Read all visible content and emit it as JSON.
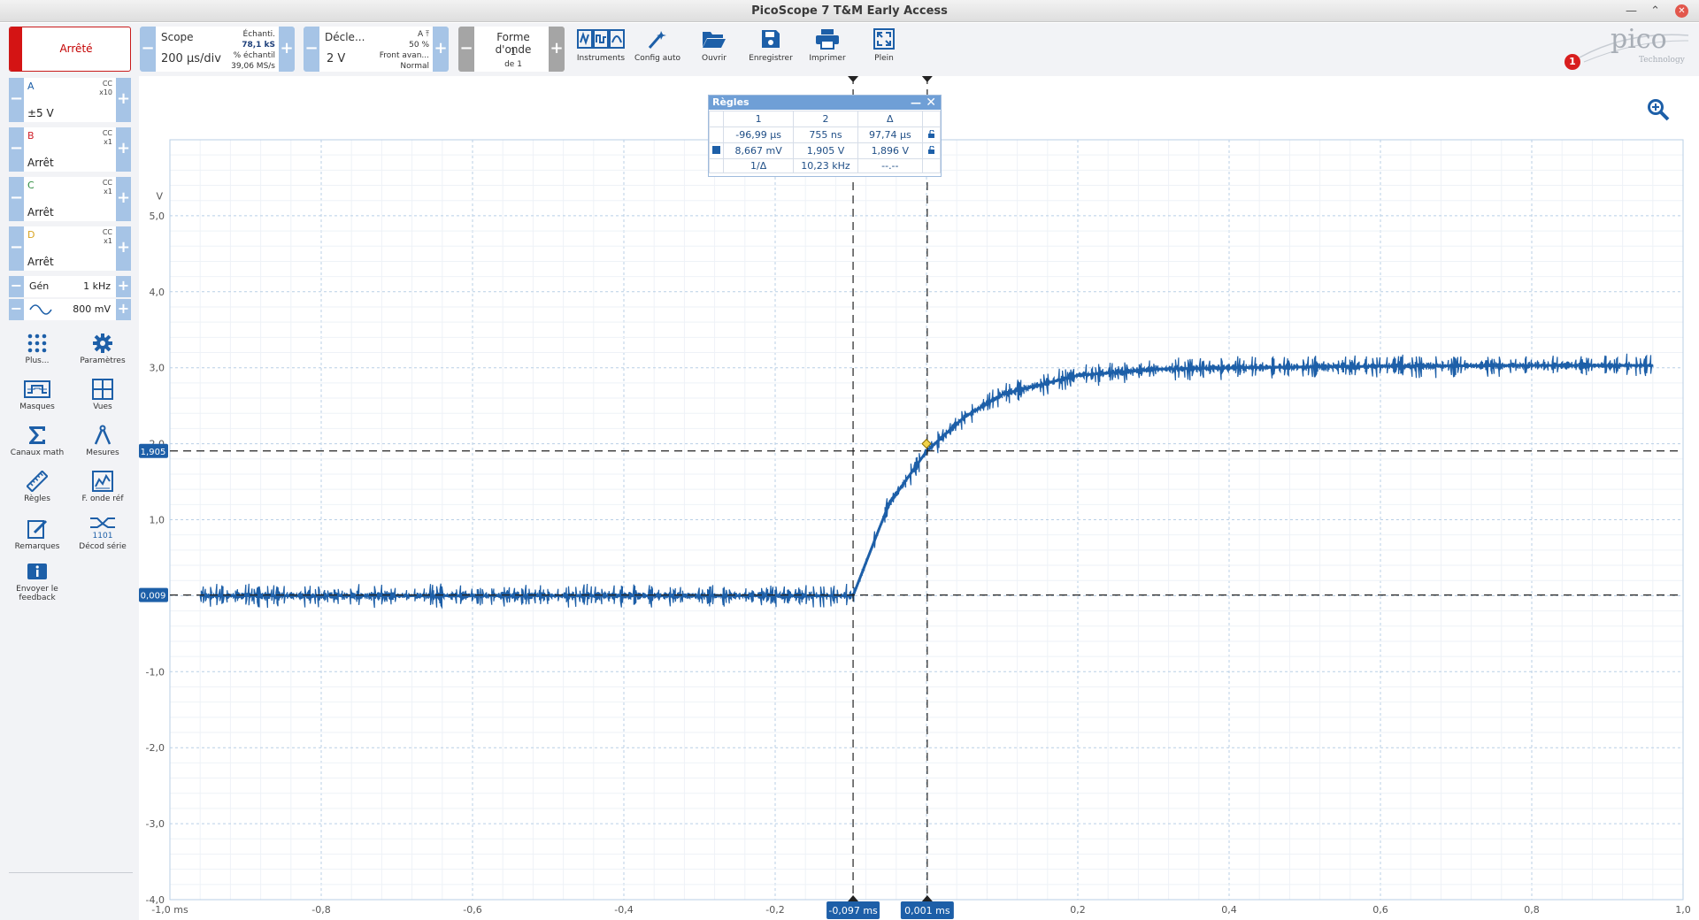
{
  "window": {
    "title": "PicoScope 7 T&M Early Access",
    "minimize_icon": "minimize-icon",
    "maximize_icon": "maximize-icon",
    "close_icon": "close-icon"
  },
  "toolbar": {
    "run_stop_label": "Arrêté",
    "scope": {
      "title": "Scope",
      "timebase": "200 µs/div",
      "sample_label": "Échanti.",
      "samples": "78,1 kS",
      "percent_label": "% échantil",
      "sample_rate": "39,06 MS/s"
    },
    "trigger": {
      "title": "Décle...",
      "level": "2 V",
      "channel": "A",
      "percent": "50 %",
      "edge": "Front avan...",
      "mode": "Normal"
    },
    "waveform": {
      "title": "Forme d'onde",
      "index": "1",
      "of_total": "de 1"
    },
    "buttons": [
      {
        "label": "Instruments",
        "icon": "instruments-icon"
      },
      {
        "label": "Config auto",
        "icon": "auto-setup-icon"
      },
      {
        "label": "Ouvrir",
        "icon": "folder-open-icon"
      },
      {
        "label": "Enregistrer",
        "icon": "save-icon"
      },
      {
        "label": "Imprimer",
        "icon": "print-icon"
      },
      {
        "label": "Plein",
        "icon": "fullscreen-icon"
      }
    ],
    "notifications": "1",
    "logo_text": "pico",
    "logo_sub": "Technology"
  },
  "channels": [
    {
      "name": "A",
      "coupling": "CC",
      "probe": "x10",
      "range": "±5 V",
      "color": "#1d5fa8"
    },
    {
      "name": "B",
      "coupling": "CC",
      "probe": "x1",
      "range": "Arrêt",
      "color": "#d0202a"
    },
    {
      "name": "C",
      "coupling": "CC",
      "probe": "x1",
      "range": "Arrêt",
      "color": "#2f8c3f"
    },
    {
      "name": "D",
      "coupling": "CC",
      "probe": "x1",
      "range": "Arrêt",
      "color": "#d8a21e"
    }
  ],
  "generator": {
    "label": "Gén",
    "frequency": "1 kHz",
    "amplitude": "800 mV",
    "wave_icon": "sine-wave-icon"
  },
  "tools": [
    {
      "label": "Plus...",
      "icon": "more-dots-icon"
    },
    {
      "label": "Paramètres",
      "icon": "gear-icon"
    },
    {
      "label": "Masques",
      "icon": "mask-icon"
    },
    {
      "label": "Vues",
      "icon": "views-grid-icon"
    },
    {
      "label": "Canaux math",
      "icon": "sigma-icon"
    },
    {
      "label": "Mesures",
      "icon": "measure-compass-icon"
    },
    {
      "label": "Règles",
      "icon": "ruler-icon"
    },
    {
      "label": "F. onde réf",
      "icon": "reference-waveform-icon"
    },
    {
      "label": "Remarques",
      "icon": "notes-icon"
    },
    {
      "label": "Décod série",
      "icon": "serial-decode-icon"
    },
    {
      "label": "Envoyer le feedback",
      "icon": "feedback-icon"
    }
  ],
  "rulers": {
    "title": "Règles",
    "headers": [
      "1",
      "2",
      "Δ"
    ],
    "rows": [
      {
        "marker": "",
        "c1": "-96,99 µs",
        "c2": "755 ns",
        "delta": "97,74 µs"
      },
      {
        "marker": "A",
        "c1": "8,667 mV",
        "c2": "1,905 V",
        "delta": "1,896 V"
      },
      {
        "marker": "",
        "c1": "1/Δ",
        "c2": "10,23 kHz",
        "delta": "--.--"
      }
    ]
  },
  "chart_data": {
    "type": "line",
    "ylabel": "V",
    "xlim": [
      -1.0,
      1.0
    ],
    "ylim": [
      -4.0,
      6.0
    ],
    "x_ticks": [
      "-1,0 ms",
      "-0,8",
      "-0,6",
      "-0,4",
      "-0,2",
      "0",
      "0,2",
      "0,4",
      "0,6",
      "0,8",
      "1,0"
    ],
    "y_ticks": [
      "5,0",
      "4,0",
      "3,0",
      "2,0",
      "1,0",
      "0",
      "-1,0",
      "-2,0",
      "-3,0",
      "-4,0"
    ],
    "grid": true,
    "series": [
      {
        "color": "#1d5fa8",
        "x": [
          -0.96,
          -0.8,
          -0.6,
          -0.4,
          -0.2,
          -0.097,
          -0.05,
          0.0,
          0.05,
          0.1,
          0.2,
          0.3,
          0.4,
          0.6,
          0.8,
          0.96
        ],
        "y": [
          0.0,
          0.0,
          0.0,
          0.0,
          0.0,
          0.0,
          1.2,
          1.9,
          2.35,
          2.65,
          2.9,
          2.98,
          3.0,
          3.02,
          3.03,
          3.03
        ]
      }
    ],
    "time_cursors": [
      {
        "value": -0.097,
        "label": "-0,097 ms"
      },
      {
        "value": 0.001,
        "label": "0,001 ms"
      }
    ],
    "voltage_cursors": [
      {
        "value": 1.905,
        "label": "1,905"
      },
      {
        "value": 0.009,
        "label": "0,009"
      }
    ]
  }
}
